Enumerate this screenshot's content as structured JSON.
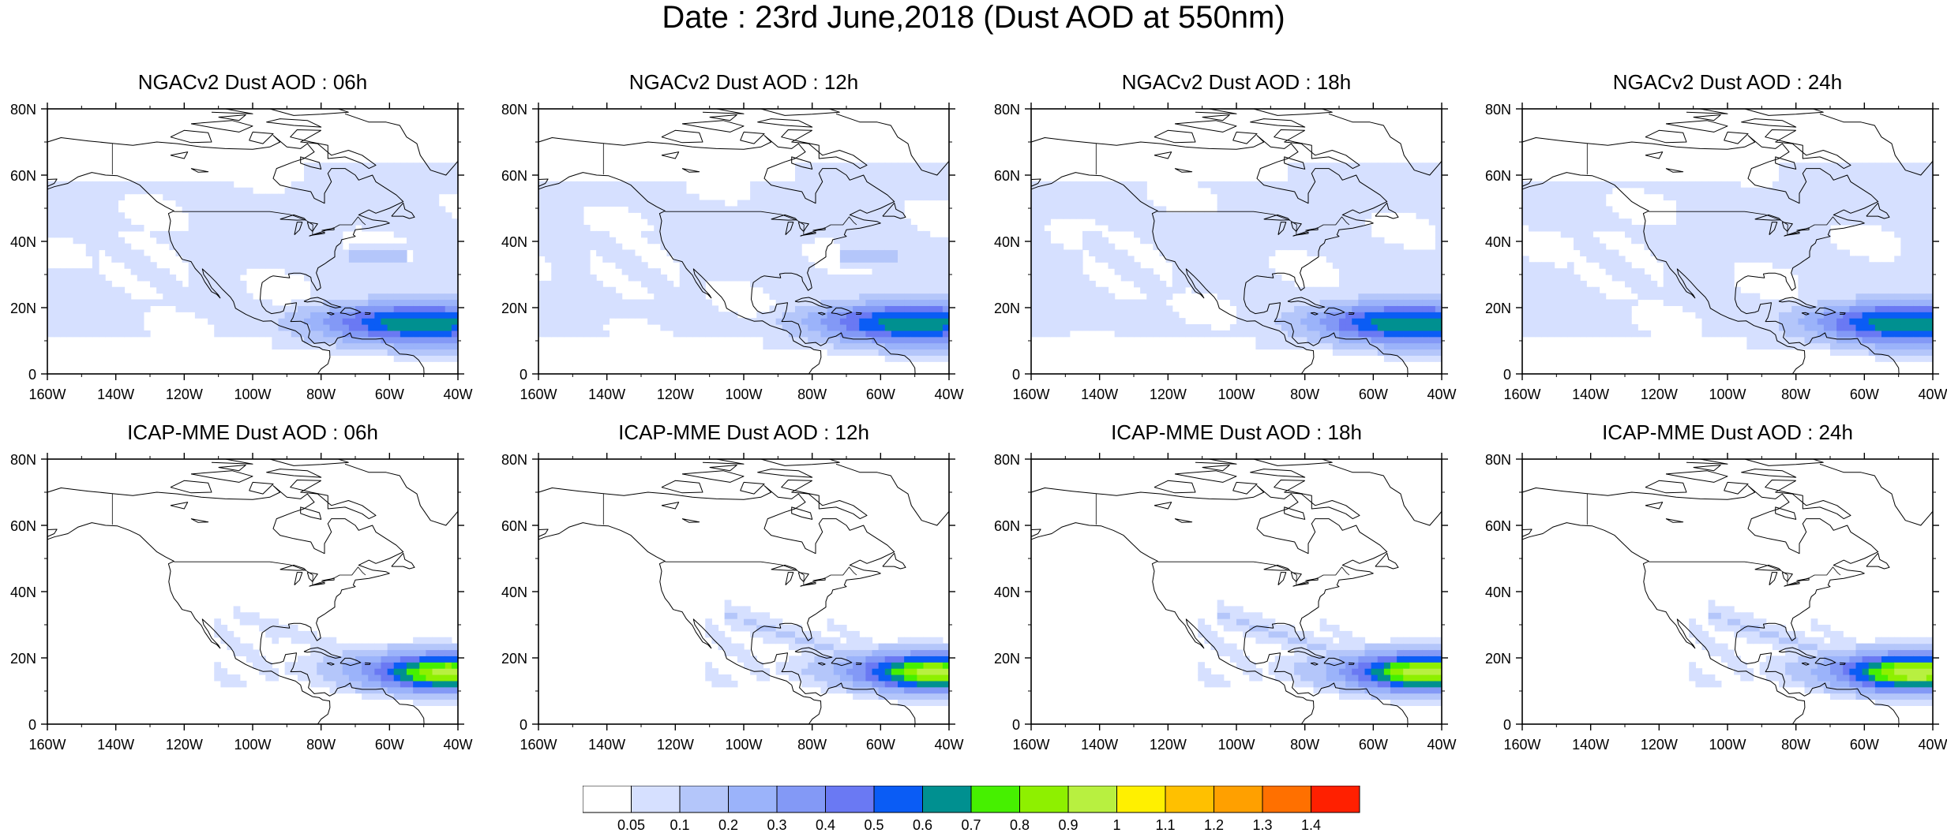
{
  "title": "Date : 23rd June,2018 (Dust AOD at 550nm)",
  "panels": [
    {
      "title": "NGACv2 Dust AOD : 06h",
      "model": "NGACv2",
      "hour": 6
    },
    {
      "title": "NGACv2 Dust AOD : 12h",
      "model": "NGACv2",
      "hour": 12
    },
    {
      "title": "NGACv2 Dust AOD : 18h",
      "model": "NGACv2",
      "hour": 18
    },
    {
      "title": "NGACv2 Dust AOD : 24h",
      "model": "NGACv2",
      "hour": 24
    },
    {
      "title": "ICAP-MME Dust AOD : 06h",
      "model": "ICAP-MME",
      "hour": 6
    },
    {
      "title": "ICAP-MME Dust AOD : 12h",
      "model": "ICAP-MME",
      "hour": 12
    },
    {
      "title": "ICAP-MME Dust AOD : 18h",
      "model": "ICAP-MME",
      "hour": 18
    },
    {
      "title": "ICAP-MME Dust AOD : 24h",
      "model": "ICAP-MME",
      "hour": 24
    }
  ],
  "axes": {
    "lon_labels": [
      "160W",
      "140W",
      "120W",
      "100W",
      "80W",
      "60W",
      "40W"
    ],
    "lat_labels": [
      "0",
      "20N",
      "40N",
      "60N",
      "80N"
    ],
    "lon_range": [
      -160,
      -40
    ],
    "lat_range": [
      0,
      80
    ]
  },
  "colorbar": {
    "labels": [
      "0.05",
      "0.1",
      "0.2",
      "0.3",
      "0.4",
      "0.5",
      "0.6",
      "0.7",
      "0.8",
      "0.9",
      "1",
      "1.1",
      "1.2",
      "1.3",
      "1.4"
    ],
    "colors": [
      "#ffffff",
      "#d6e0ff",
      "#b4c6fa",
      "#9bb3fa",
      "#8399f6",
      "#6a79f3",
      "#0a5cf5",
      "#009090",
      "#46f000",
      "#8ef000",
      "#b8f040",
      "#fff000",
      "#ffc000",
      "#ffa000",
      "#ff7000",
      "#ff2000"
    ]
  }
}
